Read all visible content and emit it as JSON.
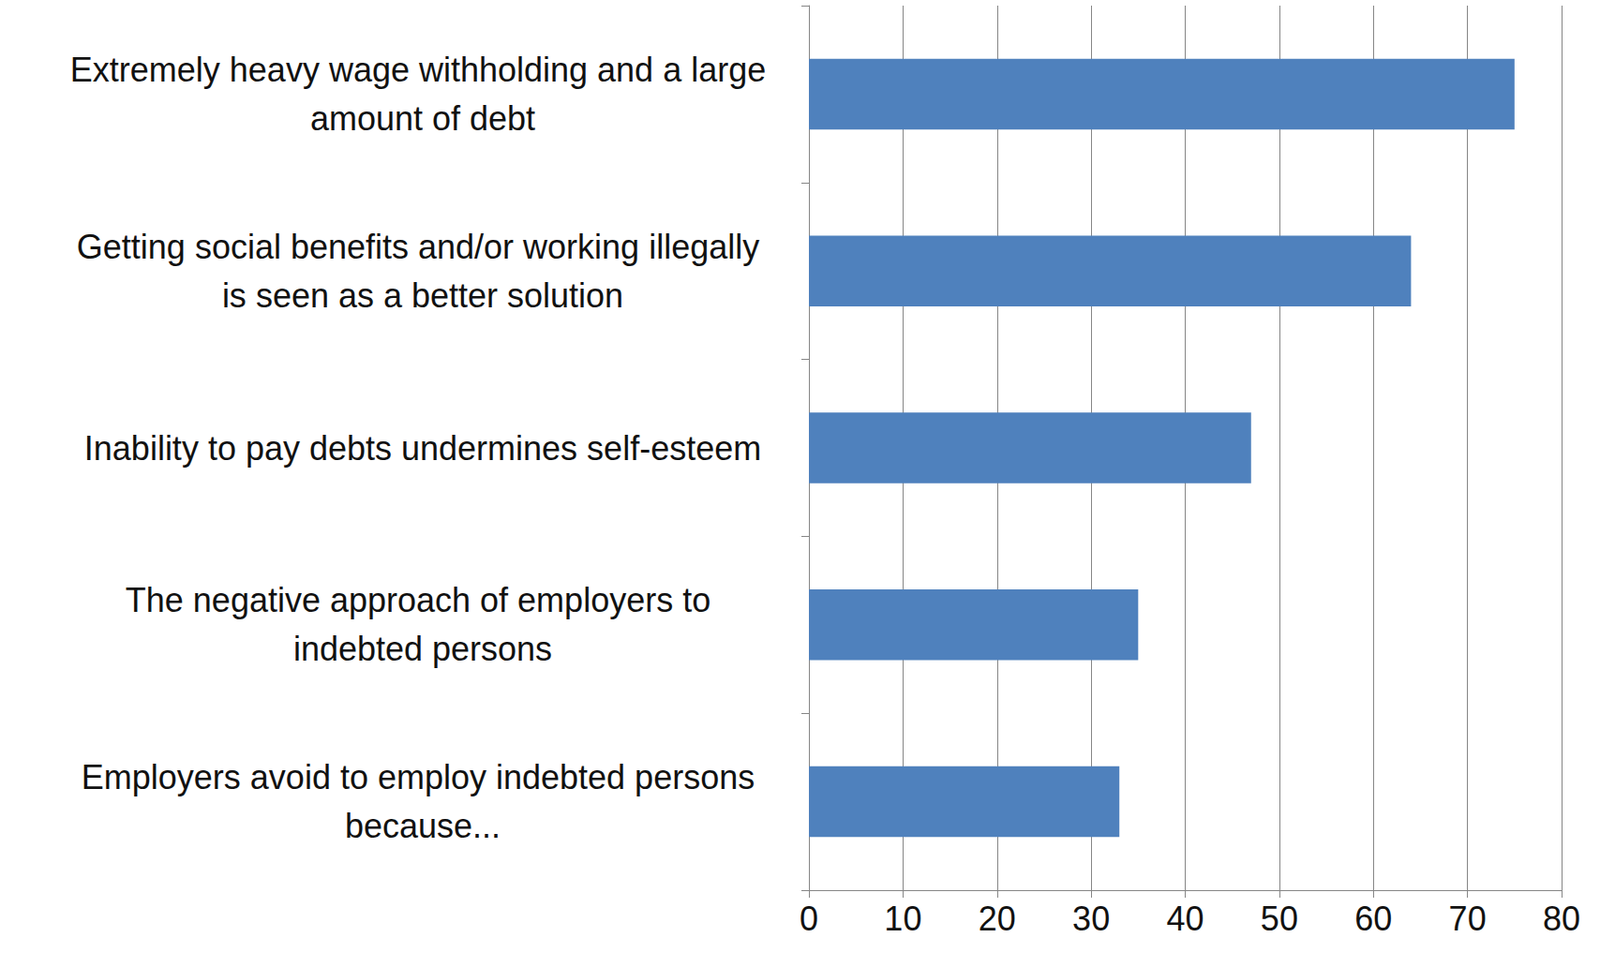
{
  "chart_data": {
    "type": "bar",
    "orientation": "horizontal",
    "categories": [
      "Extremely heavy wage withholding and a large amount of debt",
      "Getting social benefits and/or working illegally is seen as a better solution",
      "Inability to pay debts undermines self-esteem",
      "The negative approach of employers to indebted persons",
      "Employers avoid to employ indebted persons because..."
    ],
    "values": [
      75,
      64,
      47,
      35,
      33
    ],
    "color": "#4f81bd",
    "xlim": [
      0,
      80
    ],
    "xticks": [
      0,
      10,
      20,
      30,
      40,
      50,
      60,
      70,
      80
    ],
    "grid": true
  }
}
